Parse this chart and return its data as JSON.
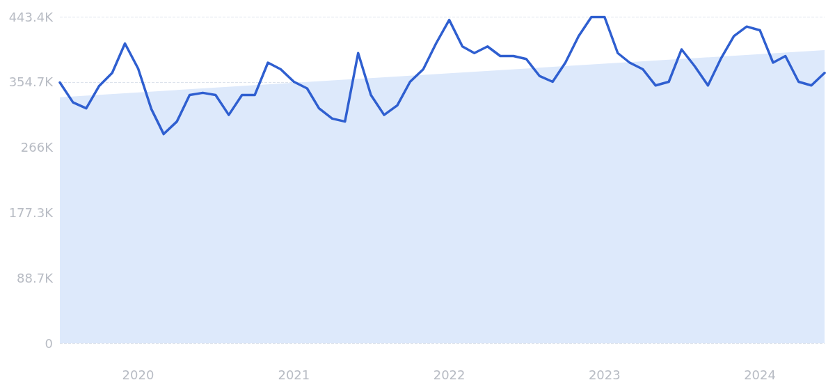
{
  "chart_data": {
    "type": "line",
    "xlim": [
      "2019-07",
      "2024-06"
    ],
    "xticks": [
      "2020",
      "2021",
      "2022",
      "2023",
      "2024"
    ],
    "ylim": [
      0,
      443400
    ],
    "yticks": [
      {
        "value": 0,
        "label": "0"
      },
      {
        "value": 88680,
        "label": "88.7K"
      },
      {
        "value": 177300,
        "label": "177.3K"
      },
      {
        "value": 266040,
        "label": "266K"
      },
      {
        "value": 354720,
        "label": "354.7K"
      },
      {
        "value": 443400,
        "label": "443.4K"
      }
    ],
    "grid": "y",
    "series": [
      {
        "type": "area",
        "color": "#dde9fb",
        "x": [
          "2019-07",
          "2024-06"
        ],
        "values": [
          334000,
          398000
        ]
      },
      {
        "type": "line",
        "color": "#2f5fd0",
        "x": [
          "2019-07",
          "2019-08",
          "2019-09",
          "2019-10",
          "2019-11",
          "2019-12",
          "2020-01",
          "2020-02",
          "2020-03",
          "2020-04",
          "2020-05",
          "2020-06",
          "2020-07",
          "2020-08",
          "2020-09",
          "2020-10",
          "2020-11",
          "2020-12",
          "2021-01",
          "2021-02",
          "2021-03",
          "2021-04",
          "2021-05",
          "2021-06",
          "2021-07",
          "2021-08",
          "2021-09",
          "2021-10",
          "2021-11",
          "2021-12",
          "2022-01",
          "2022-02",
          "2022-03",
          "2022-04",
          "2022-05",
          "2022-06",
          "2022-07",
          "2022-08",
          "2022-09",
          "2022-10",
          "2022-11",
          "2022-12",
          "2023-01",
          "2023-02",
          "2023-03",
          "2023-04",
          "2023-05",
          "2023-06",
          "2023-07",
          "2023-08",
          "2023-09",
          "2023-10",
          "2023-11",
          "2023-12",
          "2024-01",
          "2024-02",
          "2024-03",
          "2024-04",
          "2024-05",
          "2024-06"
        ],
        "values": [
          354000,
          327000,
          319000,
          349000,
          367000,
          407000,
          373000,
          318000,
          284000,
          301000,
          337000,
          340000,
          337000,
          310000,
          337000,
          337000,
          381000,
          372000,
          355000,
          346000,
          319000,
          305000,
          301000,
          394000,
          337000,
          310000,
          323000,
          355000,
          372000,
          407000,
          439000,
          403000,
          394000,
          403000,
          390000,
          390000,
          386000,
          363000,
          355000,
          381000,
          417000,
          443000,
          443000,
          394000,
          381000,
          372000,
          350000,
          355000,
          399000,
          376000,
          350000,
          386000,
          417000,
          430000,
          425000,
          381000,
          390000,
          355000,
          350000,
          367000
        ]
      }
    ]
  }
}
